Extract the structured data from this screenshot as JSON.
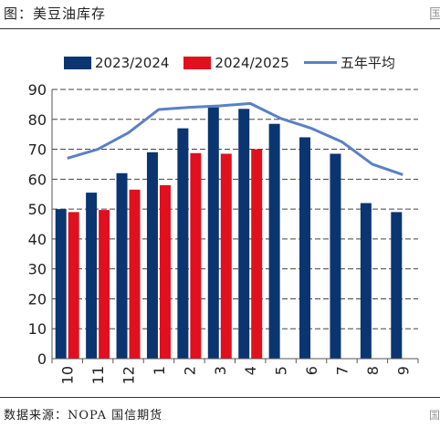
{
  "header": {
    "title": "图：美豆油库存",
    "corner_mark": "国"
  },
  "footer": {
    "source": "数据来源：NOPA 国信期货",
    "corner_mark": "国"
  },
  "colors": {
    "series_2023": "#0a3570",
    "series_2024": "#e0101e",
    "avg_line": "#5b80c6"
  },
  "chart_data": {
    "type": "bar",
    "title": "",
    "xlabel": "",
    "ylabel": "",
    "categories": [
      "10",
      "11",
      "12",
      "1",
      "2",
      "3",
      "4",
      "5",
      "6",
      "7",
      "8",
      "9"
    ],
    "ylim": [
      0,
      90
    ],
    "yticks": [
      0,
      10,
      20,
      30,
      40,
      50,
      60,
      70,
      80,
      90
    ],
    "grid": "horizontal dashed",
    "legend_placement": "top",
    "series": [
      {
        "name": "2023/2024",
        "kind": "bar",
        "color": "#0a3570",
        "values": [
          50,
          55.5,
          62,
          69,
          77,
          84,
          83.5,
          78.5,
          74,
          68.5,
          52,
          49
        ]
      },
      {
        "name": "2024/2025",
        "kind": "bar",
        "color": "#e0101e",
        "values": [
          49,
          49.7,
          56.5,
          58,
          68.7,
          68.5,
          70,
          null,
          null,
          null,
          null,
          null
        ]
      },
      {
        "name": "五年平均",
        "kind": "line",
        "color": "#5b80c6",
        "values": [
          67,
          70,
          75.5,
          83.3,
          84,
          84.5,
          85.3,
          80.3,
          77,
          72.5,
          65,
          61.5
        ]
      }
    ]
  }
}
